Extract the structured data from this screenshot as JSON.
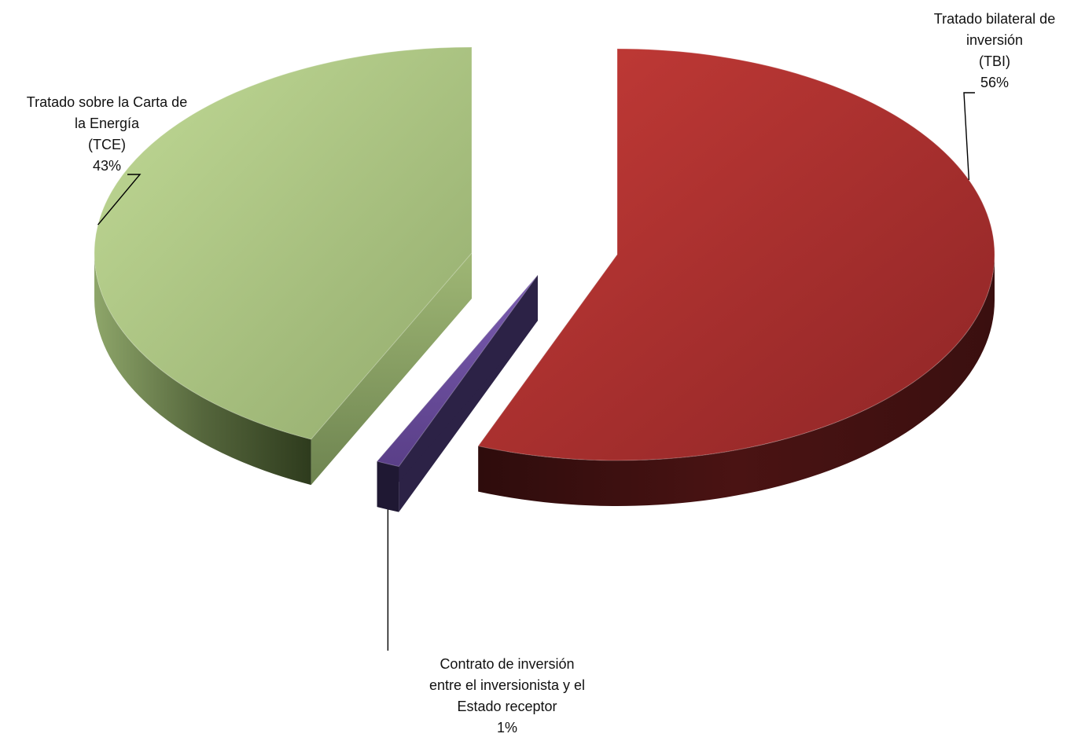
{
  "chart_data": {
    "type": "pie",
    "style": "3d-exploded",
    "slices": [
      {
        "key": "tbi",
        "name": "Tratado bilateral de inversión (TBI)",
        "label_lines": [
          "Tratado bilateral de",
          "inversión",
          "(TBI)"
        ],
        "percent_label": "56%",
        "value": 56,
        "color": "#b33535"
      },
      {
        "key": "contrato",
        "name": "Contrato de inversión entre el inversionista y el Estado receptor",
        "label_lines": [
          "Contrato de inversión",
          "entre el inversionista y el",
          "Estado receptor"
        ],
        "percent_label": "1%",
        "value": 1,
        "color": "#6a4f9a"
      },
      {
        "key": "tce",
        "name": "Tratado sobre la Carta de la Energía (TCE)",
        "label_lines": [
          "Tratado sobre la Carta de",
          "la Energía",
          "(TCE)"
        ],
        "percent_label": "43%",
        "value": 43,
        "color": "#a8c27e"
      }
    ]
  }
}
